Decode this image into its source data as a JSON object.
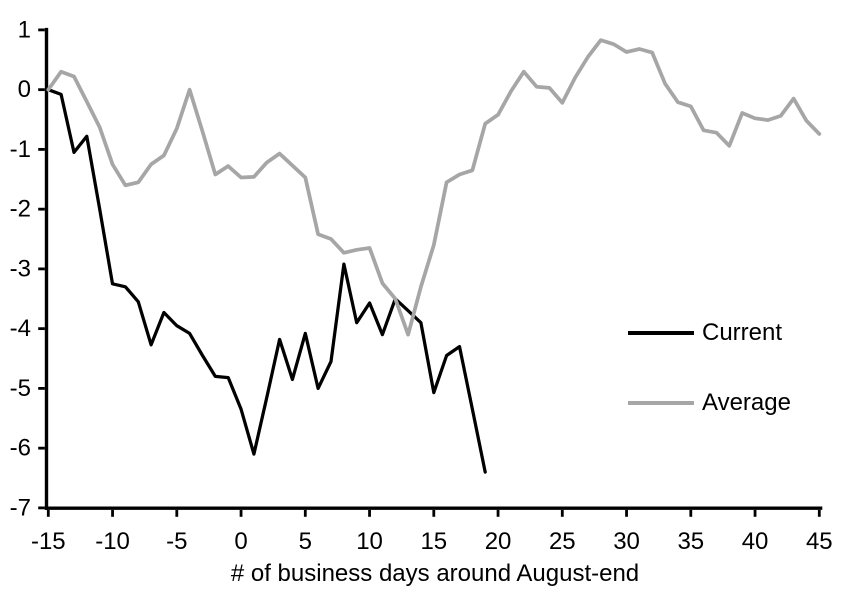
{
  "page": {
    "background": "#ffffff",
    "text_color": "#000000"
  },
  "chart_data": {
    "type": "line",
    "title": "",
    "xlabel": "# of business days around August-end",
    "ylabel": "",
    "xlim": [
      -15,
      45
    ],
    "ylim": [
      -7,
      1
    ],
    "x_ticks": [
      -15,
      -10,
      -5,
      0,
      5,
      10,
      15,
      20,
      25,
      30,
      35,
      40,
      45
    ],
    "y_ticks": [
      1,
      0,
      -1,
      -2,
      -3,
      -4,
      -5,
      -6,
      -7
    ],
    "grid": false,
    "legend_position": "right-middle",
    "x_start": -15,
    "x_step": 1,
    "series": [
      {
        "name": "Current",
        "color": "#000000",
        "width": 3.25,
        "values": [
          0,
          -0.08,
          -1.05,
          -0.78,
          -2.0,
          -3.25,
          -3.3,
          -3.55,
          -4.27,
          -3.73,
          -3.95,
          -4.08,
          -4.45,
          -4.8,
          -4.82,
          -5.35,
          -6.1,
          -5.15,
          -4.18,
          -4.85,
          -4.08,
          -5.0,
          -4.55,
          -2.92,
          -3.9,
          -3.57,
          -4.1,
          -3.5,
          -3.7,
          -3.9,
          -5.07,
          -4.45,
          -4.3,
          -5.35,
          -6.4
        ]
      },
      {
        "name": "Average",
        "color": "#a6a6a6",
        "width": 3.75,
        "values": [
          0,
          0.3,
          0.22,
          -0.2,
          -0.63,
          -1.25,
          -1.6,
          -1.55,
          -1.25,
          -1.1,
          -0.65,
          0.0,
          -0.7,
          -1.42,
          -1.28,
          -1.47,
          -1.46,
          -1.22,
          -1.07,
          -1.27,
          -1.47,
          -2.42,
          -2.5,
          -2.73,
          -2.68,
          -2.65,
          -3.24,
          -3.5,
          -4.1,
          -3.3,
          -2.6,
          -1.55,
          -1.42,
          -1.35,
          -0.57,
          -0.42,
          -0.03,
          0.3,
          0.05,
          0.03,
          -0.22,
          0.2,
          0.55,
          0.83,
          0.76,
          0.63,
          0.68,
          0.62,
          0.1,
          -0.21,
          -0.28,
          -0.68,
          -0.72,
          -0.94,
          -0.39,
          -0.48,
          -0.51,
          -0.44,
          -0.15,
          -0.52,
          -0.74
        ]
      }
    ]
  },
  "legend": {
    "items": [
      {
        "label": "Current",
        "color": "#000000"
      },
      {
        "label": "Average",
        "color": "#a6a6a6"
      }
    ]
  }
}
